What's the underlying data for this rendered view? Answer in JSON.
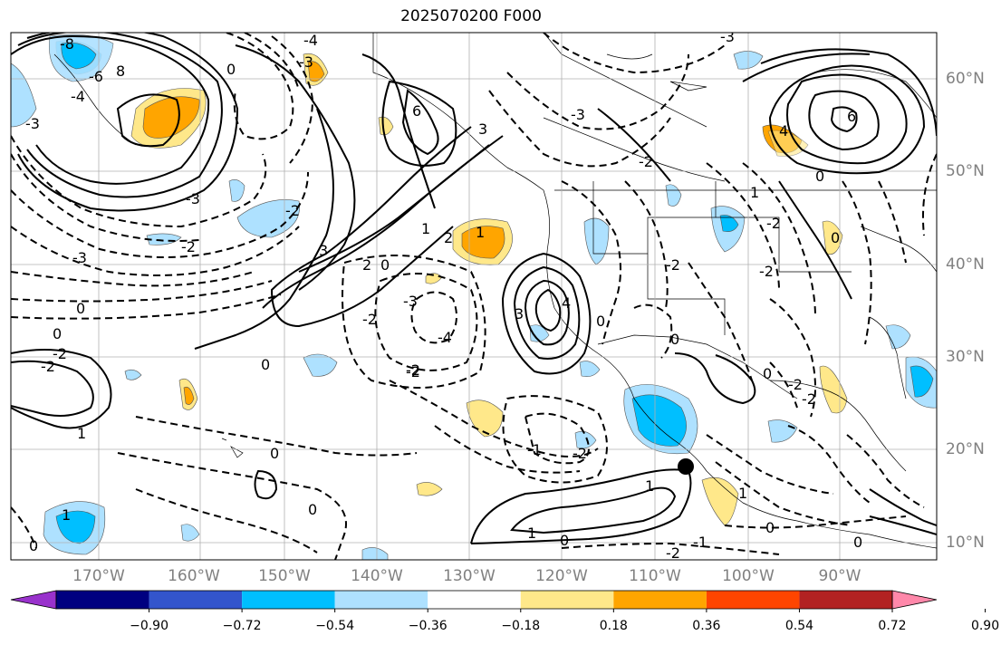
{
  "title": "2025070200 F000",
  "lat_labels": [
    "60°N",
    "50°N",
    "40°N",
    "30°N",
    "20°N",
    "10°N"
  ],
  "lon_labels": [
    "170°W",
    "160°W",
    "150°W",
    "140°W",
    "130°W",
    "120°W",
    "110°W",
    "100°W",
    "90°W"
  ],
  "colorbar": {
    "labels": [
      "−0.90",
      "−0.72",
      "−0.54",
      "−0.36",
      "−0.18",
      "0.18",
      "0.36",
      "0.54",
      "0.72",
      "0.90"
    ],
    "colors": [
      "#9932CC",
      "#000080",
      "#3355CC",
      "#00BFFF",
      "#AEE1FF",
      "#FFFFFF",
      "#FFE88A",
      "#FFA500",
      "#FF4500",
      "#B22222",
      "#FF88AA"
    ]
  },
  "contour_labels": [
    "-8",
    "-6",
    "-4",
    "-3",
    "-2",
    "-1",
    "0",
    "1",
    "2",
    "3",
    "4",
    "6",
    "8"
  ],
  "styles": {
    "positive_line": "#000000",
    "negative_line": "#000000",
    "grid": "#b0b0b0"
  }
}
